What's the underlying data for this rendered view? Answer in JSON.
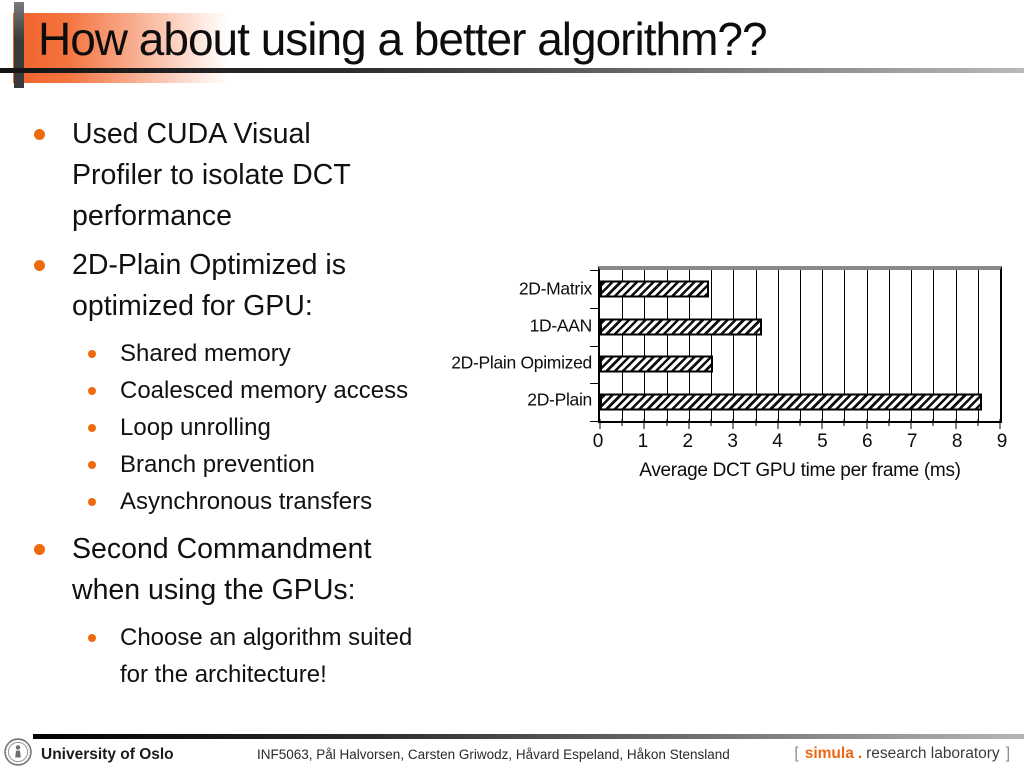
{
  "slide": {
    "title": "How about using a better algorithm??",
    "bullets": [
      {
        "level": 1,
        "lines": [
          "Used CUDA Visual",
          "Profiler to isolate DCT",
          "performance"
        ]
      },
      {
        "level": 1,
        "lines": [
          "2D-Plain Optimized is",
          "optimized for GPU:"
        ]
      },
      {
        "level": 2,
        "lines": [
          "Shared memory"
        ]
      },
      {
        "level": 2,
        "lines": [
          "Coalesced memory access"
        ]
      },
      {
        "level": 2,
        "lines": [
          "Loop unrolling"
        ]
      },
      {
        "level": 2,
        "lines": [
          "Branch prevention"
        ]
      },
      {
        "level": 2,
        "lines": [
          "Asynchronous transfers"
        ],
        "last_in_group": true
      },
      {
        "level": 1,
        "lines": [
          "Second Commandment",
          "when using the GPUs:"
        ]
      },
      {
        "level": 2,
        "lines": [
          "Choose an algorithm suited",
          "for the architecture!"
        ]
      }
    ]
  },
  "chart_data": {
    "type": "bar",
    "orientation": "horizontal",
    "categories": [
      "2D-Matrix",
      "1D-AAN",
      "2D-Plain Opimized",
      "2D-Plain"
    ],
    "values": [
      2.45,
      3.65,
      2.55,
      8.6
    ],
    "title": "",
    "xlabel": "Average DCT GPU time per frame (ms)",
    "ylabel": "",
    "xlim": [
      0,
      9
    ],
    "xticks": [
      0,
      1,
      2,
      3,
      4,
      5,
      6,
      7,
      8,
      9
    ],
    "gridline_step": 0.5,
    "grid": "vertical-on",
    "legend": "none",
    "bar_style": "black-diagonal-hatch-on-white"
  },
  "footer": {
    "university": "University of Oslo",
    "course_line": "INF5063, Pål Halvorsen, Carsten Griwodz, Håvard Espeland, Håkon Stensland",
    "lab": {
      "open": "[",
      "brand": "simula",
      "sep": ".",
      "rest": "research laboratory",
      "close": "]"
    }
  },
  "colors": {
    "bullet_accent": "#ED6B0C",
    "title_block_orange": "#F2622B",
    "simula_orange": "#EE6612",
    "rule_dark": "#141414",
    "rule_light": "#B9B9B9",
    "chart_ink": "#000000"
  }
}
